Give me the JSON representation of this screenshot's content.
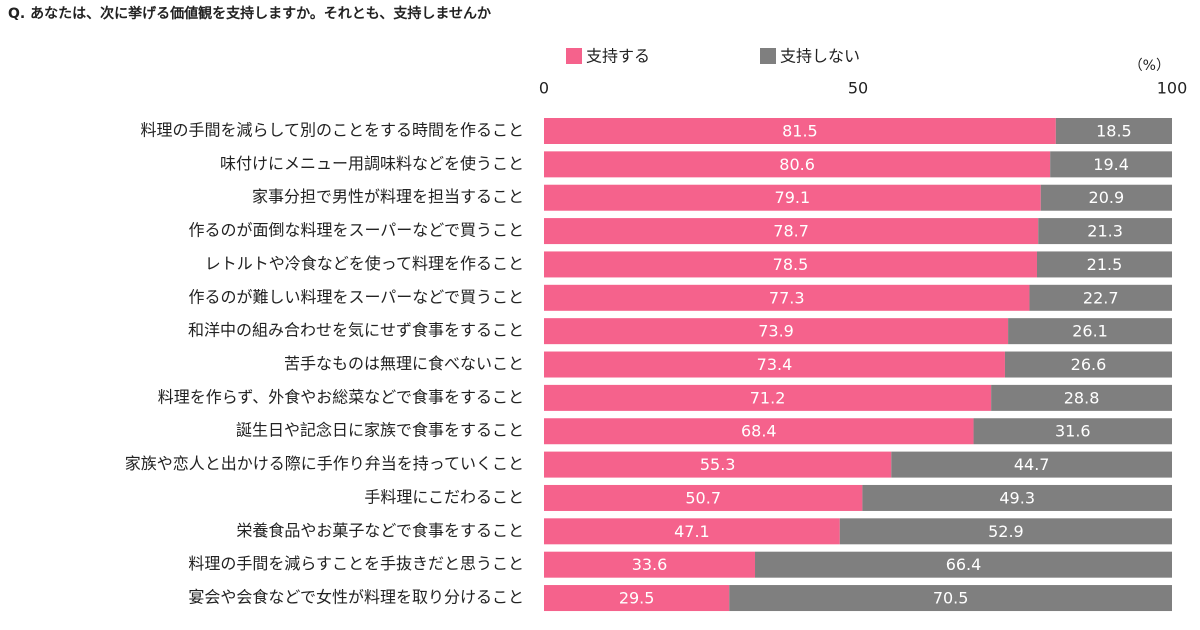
{
  "chart_data": {
    "type": "bar",
    "orientation": "horizontal",
    "stacked": true,
    "title": "Q. あなたは、次に挙げる価値観を支持しますか。それとも、支持しませんか",
    "unit_label": "（%）",
    "categories": [
      "料理の手間を減らして別のことをする時間を作ること",
      "味付けにメニュー用調味料などを使うこと",
      "家事分担で男性が料理を担当すること",
      "作るのが面倒な料理をスーパーなどで買うこと",
      "レトルトや冷食などを使って料理を作ること",
      "作るのが難しい料理をスーパーなどで買うこと",
      "和洋中の組み合わせを気にせず食事をすること",
      "苦手なものは無理に食べないこと",
      "料理を作らず、外食やお総菜などで食事をすること",
      "誕生日や記念日に家族で食事をすること",
      "家族や恋人と出かける際に手作り弁当を持っていくこと",
      "手料理にこだわること",
      "栄養食品やお菓子などで食事をすること",
      "料理の手間を減らすことを手抜きだと思うこと",
      "宴会や会食などで女性が料理を取り分けること"
    ],
    "series": [
      {
        "name": "支持する",
        "color": "#f5628c",
        "values": [
          81.5,
          80.6,
          79.1,
          78.7,
          78.5,
          77.3,
          73.9,
          73.4,
          71.2,
          68.4,
          55.3,
          50.7,
          47.1,
          33.6,
          29.5
        ]
      },
      {
        "name": "支持しない",
        "color": "#7f7f7f",
        "values": [
          18.5,
          19.4,
          20.9,
          21.3,
          21.5,
          22.7,
          26.1,
          26.6,
          28.8,
          31.6,
          44.7,
          49.3,
          52.9,
          66.4,
          70.5
        ]
      }
    ],
    "xlim": [
      0,
      100
    ],
    "xticks": [
      0,
      50,
      100
    ],
    "show_value_labels": true,
    "legend": "top"
  }
}
